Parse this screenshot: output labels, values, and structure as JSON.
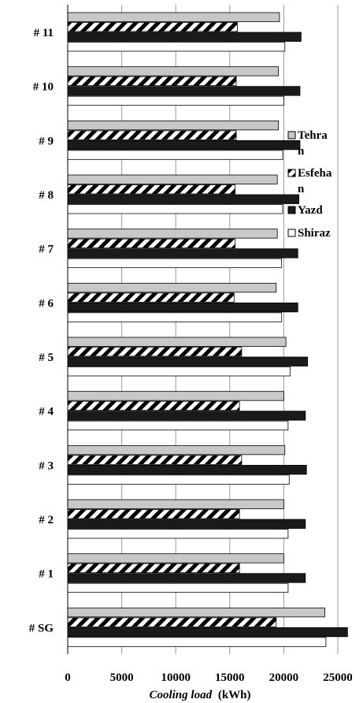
{
  "chart_data": {
    "type": "bar",
    "orientation": "horizontal",
    "categories": [
      "# 11",
      "# 10",
      "# 9",
      "# 8",
      "# 7",
      "# 6",
      "# 5",
      "# 4",
      "# 3",
      "# 2",
      "# 1",
      "# SG"
    ],
    "series": [
      {
        "name": "Tehran",
        "values": [
          19600,
          19500,
          19500,
          19400,
          19400,
          19300,
          20200,
          20000,
          20100,
          20000,
          20000,
          23800
        ]
      },
      {
        "name": "Esfehan",
        "values": [
          15700,
          15600,
          15600,
          15500,
          15500,
          15400,
          16100,
          15900,
          16100,
          15900,
          15900,
          19300
        ]
      },
      {
        "name": "Yazd",
        "values": [
          21600,
          21500,
          21500,
          21400,
          21300,
          21300,
          22200,
          22000,
          22100,
          22000,
          22000,
          25900
        ]
      },
      {
        "name": "Shiraz",
        "values": [
          20100,
          20000,
          19900,
          19900,
          19800,
          19800,
          20600,
          20400,
          20500,
          20400,
          20400,
          23900
        ]
      }
    ],
    "series_colors": {
      "Tehran": "#c8c8c8",
      "Esfehan": "hatched-black-white",
      "Yazd": "#1a1a1a",
      "Shiraz": "#ffffff"
    },
    "x_ticks": [
      "0",
      "5000",
      "10000",
      "15000",
      "20000",
      "25000"
    ],
    "xlim": [
      0,
      26500
    ],
    "xlabel_italic": "Cooling load",
    "xlabel_unit": "(kWh)",
    "legend_position": "right",
    "grid": "vertical gridlines"
  }
}
